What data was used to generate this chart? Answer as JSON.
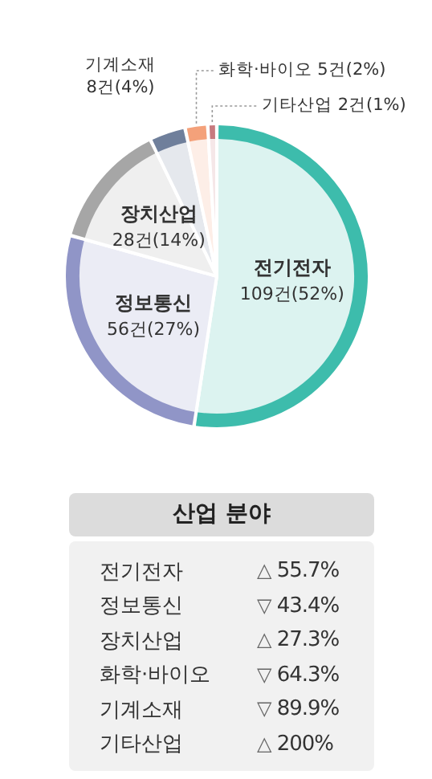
{
  "chart_data": [
    {
      "type": "pie",
      "categories": [
        "전기전자",
        "정보통신",
        "장치산업",
        "기계소재",
        "화학·바이오",
        "기타산업"
      ],
      "values": [
        109,
        56,
        28,
        8,
        5,
        2
      ],
      "value_labels": [
        "109건(52%)",
        "56건(27%)",
        "28건(14%)",
        "8건(4%)",
        "5건(2%)",
        "2건(1%)"
      ],
      "colors": [
        "#dcf3f0",
        "#ebecf5",
        "#efefef",
        "#e5e8ed",
        "#fdeee7",
        "#f5e7e8"
      ],
      "legend": false
    },
    {
      "type": "other",
      "title": "산업 분야",
      "categories": [
        "전기전자",
        "정보통신",
        "장치산업",
        "화학·바이오",
        "기계소재",
        "기타산업"
      ],
      "values": [
        55.7,
        43.4,
        27.3,
        64.3,
        89.9,
        200
      ],
      "value_labels": [
        "△ 55.7%",
        "▽ 43.4%",
        "△ 27.3%",
        "▽ 64.3%",
        "▽ 89.9%",
        "△ 200%"
      ]
    }
  ]
}
